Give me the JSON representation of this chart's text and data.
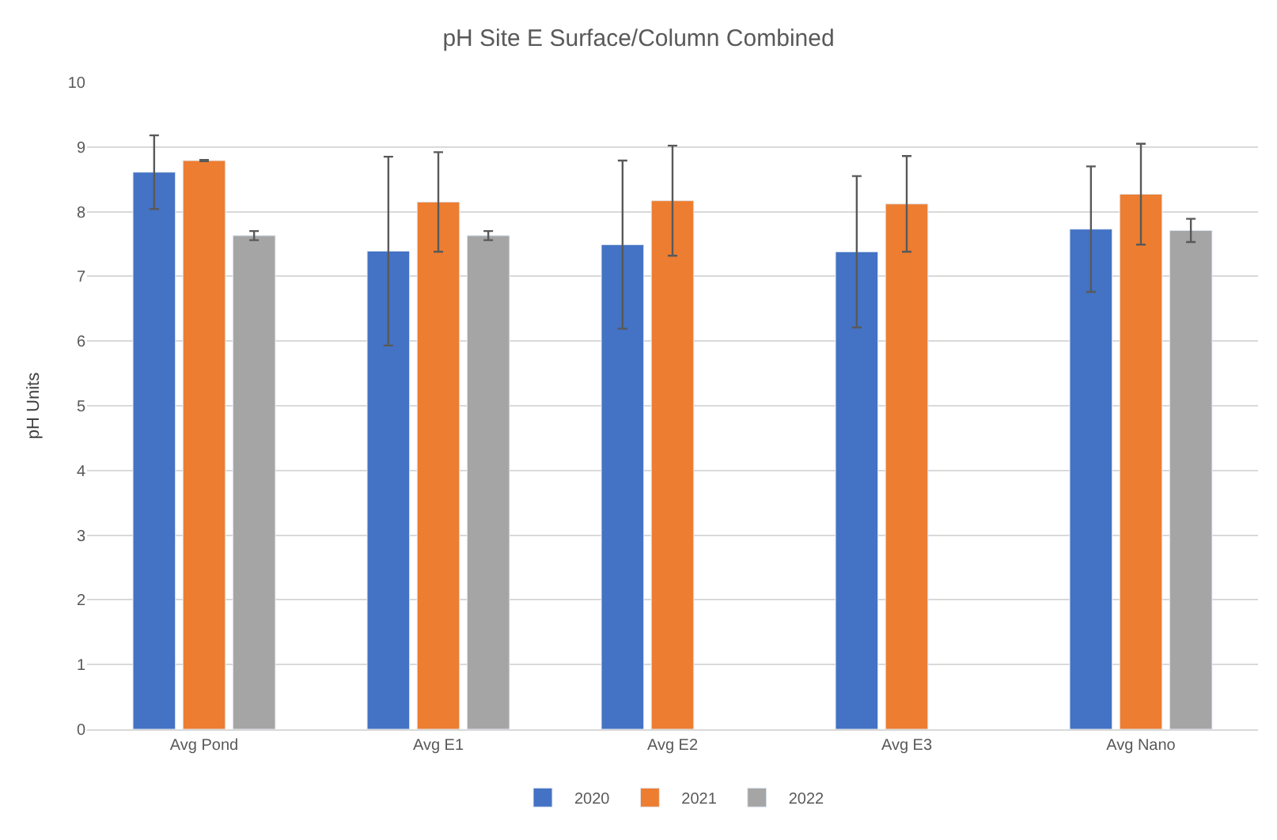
{
  "chart_data": {
    "type": "bar",
    "title": "pH Site E Surface/Column Combined",
    "ylabel": "pH Units",
    "categories": [
      "Avg Pond",
      "Avg E1",
      "Avg E2",
      "Avg E3",
      "Avg Nano"
    ],
    "series": [
      {
        "name": "2020",
        "color": "#4472c4",
        "values": [
          8.61,
          7.39,
          7.49,
          7.38,
          7.73
        ],
        "errors": [
          0.57,
          1.46,
          1.3,
          1.17,
          0.97
        ]
      },
      {
        "name": "2021",
        "color": "#ed7d31",
        "values": [
          8.79,
          8.15,
          8.17,
          8.12,
          8.27
        ],
        "errors": [
          0.01,
          0.77,
          0.85,
          0.74,
          0.78
        ]
      },
      {
        "name": "2022",
        "color": "#a5a5a5",
        "values": [
          7.63,
          7.63,
          null,
          null,
          7.71
        ],
        "errors": [
          0.07,
          0.07,
          null,
          null,
          0.18
        ]
      }
    ],
    "ylim": [
      0,
      10
    ],
    "yticks": [
      0,
      1,
      2,
      3,
      4,
      5,
      6,
      7,
      8,
      9,
      10
    ],
    "grid": "y",
    "legend": "bottom"
  }
}
